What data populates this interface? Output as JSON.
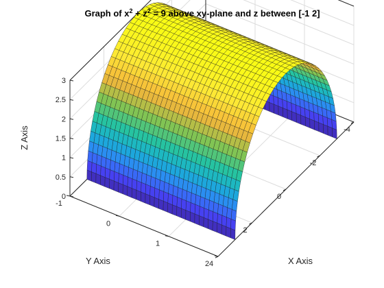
{
  "chart_data": {
    "type": "surface",
    "title": {
      "prefix": "Graph of x",
      "sup1": "2",
      "middle": " + z",
      "sup2": "2",
      "suffix": " = 9 above xy-plane and z between [-1 2]"
    },
    "xlabel": "X Axis",
    "ylabel": "Y Axis",
    "zlabel": "Z Axis",
    "xlim": [
      -4,
      4
    ],
    "ylim": [
      -1,
      2
    ],
    "zlim": [
      0,
      3
    ],
    "x_ticks": [
      "-4",
      "-2",
      "0",
      "2",
      "4"
    ],
    "y_ticks": [
      "-1",
      "0",
      "1",
      "2"
    ],
    "z_ticks": [
      "0",
      "0.5",
      "1",
      "1.5",
      "2",
      "2.5",
      "3"
    ],
    "surface": {
      "equation": "x^2 + z^2 = 9",
      "radius": 3,
      "x_range": [
        -3,
        3
      ],
      "y_range": [
        -1,
        2
      ],
      "z_range": [
        0,
        3
      ]
    },
    "grid": true,
    "colormap": [
      "#3e26a8",
      "#4743f6",
      "#2e87f7",
      "#18b1d4",
      "#27c59c",
      "#86c450",
      "#f5b63a",
      "#fde935",
      "#f9fb15"
    ]
  }
}
